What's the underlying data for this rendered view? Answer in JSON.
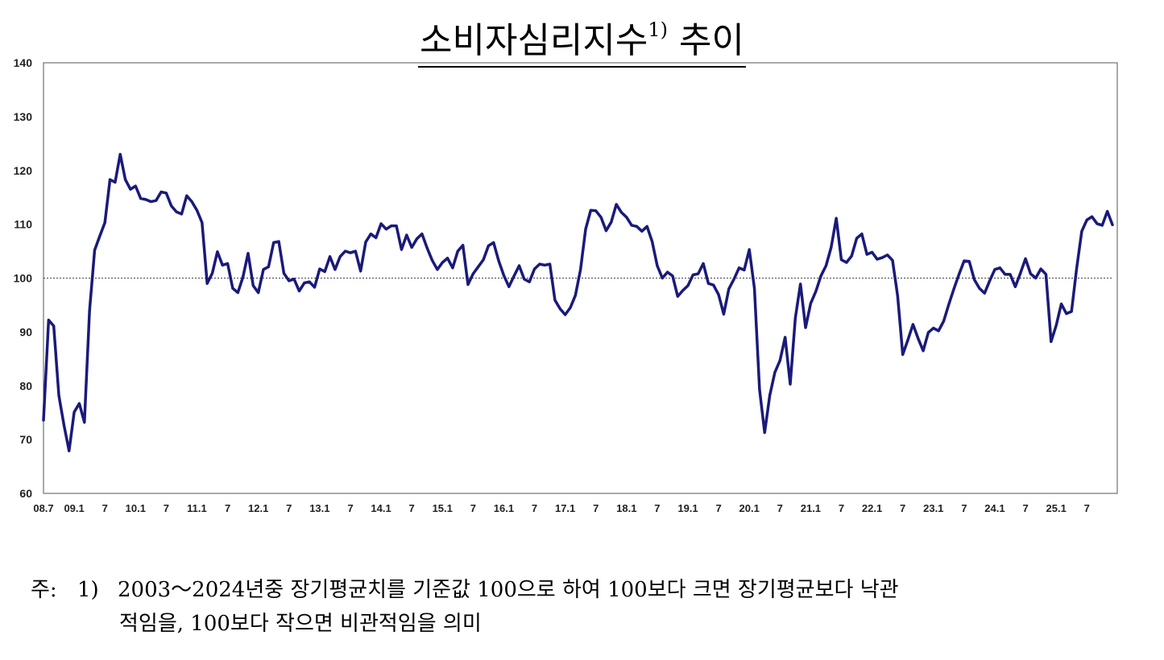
{
  "title": {
    "text": "소비자심리지수",
    "superscript": "1)",
    "suffix": "추이"
  },
  "note": {
    "label": "주:",
    "number": "1)",
    "line1": "2003～2024년중 장기평균치를 기준값 100으로 하여 100보다 크면 장기평균보다 낙관",
    "line2": "적임을, 100보다 작으면 비관적임을 의미"
  },
  "colors": {
    "series": "#1a1a7a",
    "reference_line": "#444444",
    "frame": "#555555"
  },
  "chart_data": {
    "type": "line",
    "title": "소비자심리지수 추이",
    "xlabel": "",
    "ylabel": "",
    "ylim": [
      60,
      140
    ],
    "yticks": [
      "60",
      "70",
      "80",
      "90",
      "100",
      "110",
      "120",
      "130",
      "140"
    ],
    "start": "2008-07",
    "end": "2025-12",
    "xtick_labels": [
      {
        "month": "2008-07",
        "label": "08.7"
      },
      {
        "month": "2009-01",
        "label": "09.1"
      },
      {
        "month": "2009-07",
        "label": "7"
      },
      {
        "month": "2010-01",
        "label": "10.1"
      },
      {
        "month": "2010-07",
        "label": "7"
      },
      {
        "month": "2011-01",
        "label": "11.1"
      },
      {
        "month": "2011-07",
        "label": "7"
      },
      {
        "month": "2012-01",
        "label": "12.1"
      },
      {
        "month": "2012-07",
        "label": "7"
      },
      {
        "month": "2013-01",
        "label": "13.1"
      },
      {
        "month": "2013-07",
        "label": "7"
      },
      {
        "month": "2014-01",
        "label": "14.1"
      },
      {
        "month": "2014-07",
        "label": "7"
      },
      {
        "month": "2015-01",
        "label": "15.1"
      },
      {
        "month": "2015-07",
        "label": "7"
      },
      {
        "month": "2016-01",
        "label": "16.1"
      },
      {
        "month": "2016-07",
        "label": "7"
      },
      {
        "month": "2017-01",
        "label": "17.1"
      },
      {
        "month": "2017-07",
        "label": "7"
      },
      {
        "month": "2018-01",
        "label": "18.1"
      },
      {
        "month": "2018-07",
        "label": "7"
      },
      {
        "month": "2019-01",
        "label": "19.1"
      },
      {
        "month": "2019-07",
        "label": "7"
      },
      {
        "month": "2020-01",
        "label": "20.1"
      },
      {
        "month": "2020-07",
        "label": "7"
      },
      {
        "month": "2021-01",
        "label": "21.1"
      },
      {
        "month": "2021-07",
        "label": "7"
      },
      {
        "month": "2022-01",
        "label": "22.1"
      },
      {
        "month": "2022-07",
        "label": "7"
      },
      {
        "month": "2023-01",
        "label": "23.1"
      },
      {
        "month": "2023-07",
        "label": "7"
      },
      {
        "month": "2024-01",
        "label": "24.1"
      },
      {
        "month": "2024-07",
        "label": "7"
      },
      {
        "month": "2025-01",
        "label": "25.1"
      },
      {
        "month": "2025-07",
        "label": "7"
      }
    ],
    "reference_line": 100,
    "grid": false,
    "legend": "none",
    "series": [
      {
        "name": "",
        "points": [
          [
            "2008-07",
            73.6
          ],
          [
            "2008-08",
            92.2
          ],
          [
            "2008-09",
            91.1
          ],
          [
            "2008-10",
            78.2
          ],
          [
            "2008-11",
            72.7
          ],
          [
            "2008-12",
            67.9
          ],
          [
            "2009-01",
            75.1
          ],
          [
            "2009-02",
            76.7
          ],
          [
            "2009-03",
            73.2
          ],
          [
            "2009-04",
            93.9
          ],
          [
            "2009-05",
            105.2
          ],
          [
            "2009-06",
            107.8
          ],
          [
            "2009-07",
            110.3
          ],
          [
            "2009-08",
            118.3
          ],
          [
            "2009-09",
            117.8
          ],
          [
            "2009-10",
            123.0
          ],
          [
            "2009-11",
            118.3
          ],
          [
            "2009-12",
            116.5
          ],
          [
            "2010-01",
            117.1
          ],
          [
            "2010-02",
            114.8
          ],
          [
            "2010-03",
            114.6
          ],
          [
            "2010-04",
            114.2
          ],
          [
            "2010-05",
            114.4
          ],
          [
            "2010-06",
            116.0
          ],
          [
            "2010-07",
            115.8
          ],
          [
            "2010-08",
            113.4
          ],
          [
            "2010-09",
            112.3
          ],
          [
            "2010-10",
            111.9
          ],
          [
            "2010-11",
            115.3
          ],
          [
            "2010-12",
            114.2
          ],
          [
            "2011-01",
            112.6
          ],
          [
            "2011-02",
            110.3
          ],
          [
            "2011-03",
            99.0
          ],
          [
            "2011-04",
            100.9
          ],
          [
            "2011-05",
            104.9
          ],
          [
            "2011-06",
            102.4
          ],
          [
            "2011-07",
            102.7
          ],
          [
            "2011-08",
            98.1
          ],
          [
            "2011-09",
            97.3
          ],
          [
            "2011-10",
            100.2
          ],
          [
            "2011-11",
            104.6
          ],
          [
            "2011-12",
            98.6
          ],
          [
            "2012-01",
            97.3
          ],
          [
            "2012-02",
            101.6
          ],
          [
            "2012-03",
            102.1
          ],
          [
            "2012-04",
            106.6
          ],
          [
            "2012-05",
            106.8
          ],
          [
            "2012-06",
            100.9
          ],
          [
            "2012-07",
            99.5
          ],
          [
            "2012-08",
            99.8
          ],
          [
            "2012-09",
            97.6
          ],
          [
            "2012-10",
            99.1
          ],
          [
            "2012-11",
            99.3
          ],
          [
            "2012-12",
            98.3
          ],
          [
            "2013-01",
            101.7
          ],
          [
            "2013-02",
            101.2
          ],
          [
            "2013-03",
            104.0
          ],
          [
            "2013-04",
            101.6
          ],
          [
            "2013-05",
            104.0
          ],
          [
            "2013-06",
            105.0
          ],
          [
            "2013-07",
            104.7
          ],
          [
            "2013-08",
            105.0
          ],
          [
            "2013-09",
            101.3
          ],
          [
            "2013-10",
            106.7
          ],
          [
            "2013-11",
            108.2
          ],
          [
            "2013-12",
            107.5
          ],
          [
            "2014-01",
            110.1
          ],
          [
            "2014-02",
            109.1
          ],
          [
            "2014-03",
            109.7
          ],
          [
            "2014-04",
            109.7
          ],
          [
            "2014-05",
            105.3
          ],
          [
            "2014-06",
            108.0
          ],
          [
            "2014-07",
            105.7
          ],
          [
            "2014-08",
            107.3
          ],
          [
            "2014-09",
            108.2
          ],
          [
            "2014-10",
            105.6
          ],
          [
            "2014-11",
            103.3
          ],
          [
            "2014-12",
            101.6
          ],
          [
            "2015-01",
            102.9
          ],
          [
            "2015-02",
            103.7
          ],
          [
            "2015-03",
            101.9
          ],
          [
            "2015-04",
            105.0
          ],
          [
            "2015-05",
            106.1
          ],
          [
            "2015-06",
            98.8
          ],
          [
            "2015-07",
            100.8
          ],
          [
            "2015-08",
            102.1
          ],
          [
            "2015-09",
            103.4
          ],
          [
            "2015-10",
            106.0
          ],
          [
            "2015-11",
            106.6
          ],
          [
            "2015-12",
            103.2
          ],
          [
            "2016-01",
            100.5
          ],
          [
            "2016-02",
            98.4
          ],
          [
            "2016-03",
            100.4
          ],
          [
            "2016-04",
            102.3
          ],
          [
            "2016-05",
            99.8
          ],
          [
            "2016-06",
            99.3
          ],
          [
            "2016-07",
            101.7
          ],
          [
            "2016-08",
            102.6
          ],
          [
            "2016-09",
            102.4
          ],
          [
            "2016-10",
            102.6
          ],
          [
            "2016-11",
            95.9
          ],
          [
            "2016-12",
            94.3
          ],
          [
            "2017-01",
            93.2
          ],
          [
            "2017-02",
            94.5
          ],
          [
            "2017-03",
            96.8
          ],
          [
            "2017-04",
            101.6
          ],
          [
            "2017-05",
            109.1
          ],
          [
            "2017-06",
            112.6
          ],
          [
            "2017-07",
            112.5
          ],
          [
            "2017-08",
            111.3
          ],
          [
            "2017-09",
            108.8
          ],
          [
            "2017-10",
            110.4
          ],
          [
            "2017-11",
            113.7
          ],
          [
            "2017-12",
            112.2
          ],
          [
            "2018-01",
            111.3
          ],
          [
            "2018-02",
            109.8
          ],
          [
            "2018-03",
            109.6
          ],
          [
            "2018-04",
            108.7
          ],
          [
            "2018-05",
            109.6
          ],
          [
            "2018-06",
            106.8
          ],
          [
            "2018-07",
            102.3
          ],
          [
            "2018-08",
            100.0
          ],
          [
            "2018-09",
            101.1
          ],
          [
            "2018-10",
            100.4
          ],
          [
            "2018-11",
            96.6
          ],
          [
            "2018-12",
            97.7
          ],
          [
            "2019-01",
            98.6
          ],
          [
            "2019-02",
            100.6
          ],
          [
            "2019-03",
            100.8
          ],
          [
            "2019-04",
            102.7
          ],
          [
            "2019-05",
            99.0
          ],
          [
            "2019-06",
            98.7
          ],
          [
            "2019-07",
            96.9
          ],
          [
            "2019-08",
            93.3
          ],
          [
            "2019-09",
            98.0
          ],
          [
            "2019-10",
            99.8
          ],
          [
            "2019-11",
            101.9
          ],
          [
            "2019-12",
            101.5
          ],
          [
            "2020-01",
            105.3
          ],
          [
            "2020-02",
            98.1
          ],
          [
            "2020-03",
            79.3
          ],
          [
            "2020-04",
            71.3
          ],
          [
            "2020-05",
            78.2
          ],
          [
            "2020-06",
            82.5
          ],
          [
            "2020-07",
            84.7
          ],
          [
            "2020-08",
            89.0
          ],
          [
            "2020-09",
            80.3
          ],
          [
            "2020-10",
            92.6
          ],
          [
            "2020-11",
            98.9
          ],
          [
            "2020-12",
            90.8
          ],
          [
            "2021-01",
            95.3
          ],
          [
            "2021-02",
            97.5
          ],
          [
            "2021-03",
            100.4
          ],
          [
            "2021-04",
            102.3
          ],
          [
            "2021-05",
            105.7
          ],
          [
            "2021-06",
            111.1
          ],
          [
            "2021-07",
            103.4
          ],
          [
            "2021-08",
            102.9
          ],
          [
            "2021-09",
            104.1
          ],
          [
            "2021-10",
            107.4
          ],
          [
            "2021-11",
            108.2
          ],
          [
            "2021-12",
            104.4
          ],
          [
            "2022-01",
            104.8
          ],
          [
            "2022-02",
            103.5
          ],
          [
            "2022-03",
            103.8
          ],
          [
            "2022-04",
            104.3
          ],
          [
            "2022-05",
            103.3
          ],
          [
            "2022-06",
            96.7
          ],
          [
            "2022-07",
            85.8
          ],
          [
            "2022-08",
            88.5
          ],
          [
            "2022-09",
            91.4
          ],
          [
            "2022-10",
            88.8
          ],
          [
            "2022-11",
            86.5
          ],
          [
            "2022-12",
            89.9
          ],
          [
            "2023-01",
            90.7
          ],
          [
            "2023-02",
            90.2
          ],
          [
            "2023-03",
            92.0
          ],
          [
            "2023-04",
            95.1
          ],
          [
            "2023-05",
            98.0
          ],
          [
            "2023-06",
            100.7
          ],
          [
            "2023-07",
            103.2
          ],
          [
            "2023-08",
            103.1
          ],
          [
            "2023-09",
            99.7
          ],
          [
            "2023-10",
            98.1
          ],
          [
            "2023-11",
            97.2
          ],
          [
            "2023-12",
            99.5
          ],
          [
            "2024-01",
            101.6
          ],
          [
            "2024-02",
            101.9
          ],
          [
            "2024-03",
            100.7
          ],
          [
            "2024-04",
            100.7
          ],
          [
            "2024-05",
            98.4
          ],
          [
            "2024-06",
            100.9
          ],
          [
            "2024-07",
            103.6
          ],
          [
            "2024-08",
            100.8
          ],
          [
            "2024-09",
            100.0
          ],
          [
            "2024-10",
            101.7
          ],
          [
            "2024-11",
            100.7
          ],
          [
            "2024-12",
            88.2
          ],
          [
            "2025-01",
            91.2
          ],
          [
            "2025-02",
            95.2
          ],
          [
            "2025-03",
            93.4
          ],
          [
            "2025-04",
            93.8
          ],
          [
            "2025-05",
            101.8
          ],
          [
            "2025-06",
            108.7
          ],
          [
            "2025-07",
            110.8
          ],
          [
            "2025-08",
            111.4
          ],
          [
            "2025-09",
            110.1
          ],
          [
            "2025-10",
            109.8
          ],
          [
            "2025-11",
            112.4
          ],
          [
            "2025-12",
            109.9
          ]
        ]
      }
    ]
  }
}
